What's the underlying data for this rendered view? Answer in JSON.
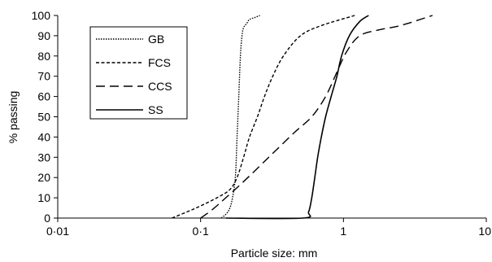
{
  "chart_data": {
    "type": "line",
    "xlabel": "Particle size: mm",
    "ylabel": "% passing",
    "xscale": "log",
    "xlim": [
      0.01,
      10
    ],
    "ylim": [
      0,
      100
    ],
    "x_ticks": [
      0.01,
      0.1,
      1,
      10
    ],
    "x_tick_labels": [
      "0·01",
      "0·1",
      "1",
      "10"
    ],
    "y_ticks": [
      0,
      10,
      20,
      30,
      40,
      50,
      60,
      70,
      80,
      90,
      100
    ],
    "y_tick_labels": [
      "0",
      "10",
      "20",
      "30",
      "40",
      "50",
      "60",
      "70",
      "80",
      "90",
      "100"
    ],
    "grid": false,
    "legend_placement": "top-left",
    "series": [
      {
        "name": "GB",
        "style": "dotted",
        "color": "#000000",
        "points": [
          [
            0.14,
            0
          ],
          [
            0.155,
            3
          ],
          [
            0.165,
            8
          ],
          [
            0.175,
            20
          ],
          [
            0.18,
            40
          ],
          [
            0.185,
            60
          ],
          [
            0.19,
            80
          ],
          [
            0.195,
            90
          ],
          [
            0.2,
            94
          ],
          [
            0.21,
            96
          ],
          [
            0.22,
            98
          ],
          [
            0.24,
            99
          ],
          [
            0.26,
            100
          ]
        ]
      },
      {
        "name": "FCS",
        "style": "short-dash",
        "color": "#000000",
        "points": [
          [
            0.063,
            0
          ],
          [
            0.08,
            3
          ],
          [
            0.1,
            6
          ],
          [
            0.13,
            10
          ],
          [
            0.16,
            14
          ],
          [
            0.18,
            20
          ],
          [
            0.2,
            30
          ],
          [
            0.22,
            40
          ],
          [
            0.25,
            50
          ],
          [
            0.28,
            60
          ],
          [
            0.32,
            70
          ],
          [
            0.38,
            80
          ],
          [
            0.5,
            90
          ],
          [
            0.7,
            95
          ],
          [
            1.2,
            100
          ]
        ]
      },
      {
        "name": "CCS",
        "style": "long-dash",
        "color": "#000000",
        "points": [
          [
            0.1,
            0
          ],
          [
            0.12,
            4
          ],
          [
            0.15,
            10
          ],
          [
            0.2,
            18
          ],
          [
            0.3,
            30
          ],
          [
            0.45,
            42
          ],
          [
            0.6,
            50
          ],
          [
            0.75,
            60
          ],
          [
            0.9,
            72
          ],
          [
            1.05,
            82
          ],
          [
            1.3,
            90
          ],
          [
            1.8,
            93
          ],
          [
            2.5,
            95
          ],
          [
            4.2,
            100
          ]
        ]
      },
      {
        "name": "SS",
        "style": "solid",
        "color": "#000000",
        "points": [
          [
            0.15,
            0
          ],
          [
            0.52,
            0
          ],
          [
            0.57,
            3
          ],
          [
            0.6,
            10
          ],
          [
            0.63,
            20
          ],
          [
            0.66,
            30
          ],
          [
            0.7,
            40
          ],
          [
            0.75,
            50
          ],
          [
            0.82,
            60
          ],
          [
            0.9,
            70
          ],
          [
            0.97,
            80
          ],
          [
            1.1,
            90
          ],
          [
            1.3,
            97
          ],
          [
            1.5,
            100
          ]
        ]
      }
    ]
  }
}
